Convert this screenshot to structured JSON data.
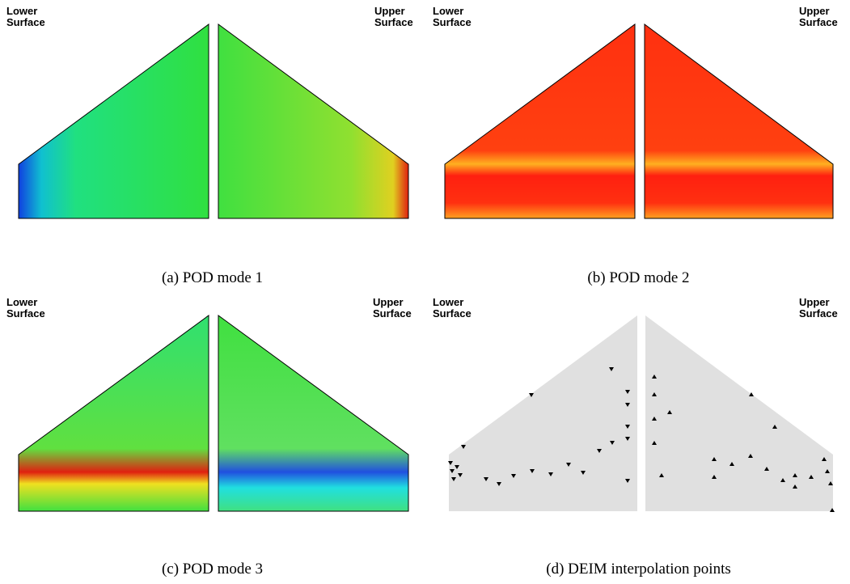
{
  "panels": [
    {
      "lower_label": "Lower\nSurface",
      "upper_label": "Upper\nSurface",
      "caption": "(a) POD mode 1"
    },
    {
      "lower_label": "Lower\nSurface",
      "upper_label": "Upper\nSurface",
      "caption": "(b) POD mode 2"
    },
    {
      "lower_label": "Lower\nSurface",
      "upper_label": "Upper\nSurface",
      "caption": "(c) POD mode 3"
    },
    {
      "lower_label": "Lower\nSurface",
      "upper_label": "Upper\nSurface",
      "caption": "(d) DEIM interpolation points"
    }
  ]
}
